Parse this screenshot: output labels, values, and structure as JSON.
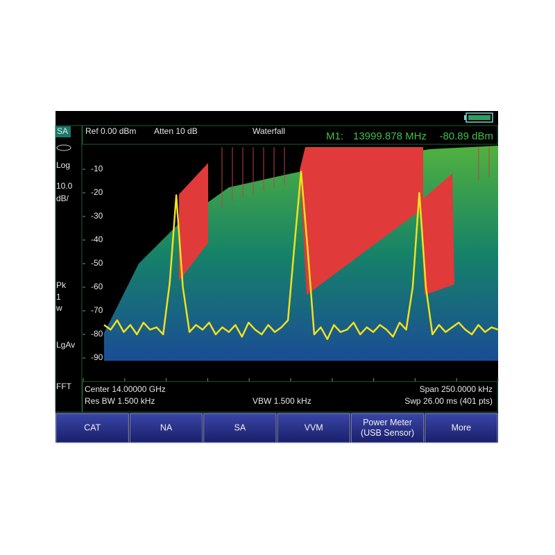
{
  "status": {
    "mode": "SA",
    "scale_type": "Log",
    "scale": "10.0",
    "scale_unit": "dB/",
    "detector": "Pk",
    "trace_num": "1",
    "trace_mode": "w",
    "average": "LgAv",
    "sweep_mode": "FFT"
  },
  "header": {
    "ref": "Ref 0.00 dBm",
    "atten": "Atten 10 dB",
    "view": "Waterfall",
    "marker_name": "M1:",
    "marker_freq": "13999.878 MHz",
    "marker_level": "-80.89 dBm"
  },
  "plot": {
    "ylim": [
      -100,
      0
    ],
    "yticks": [
      -10,
      -20,
      -30,
      -40,
      -50,
      -60,
      -70,
      -80,
      -90
    ],
    "trace": {
      "color": "#f2e21c",
      "values": [
        -76,
        -78,
        -74,
        -79,
        -76,
        -80,
        -75,
        -78,
        -77,
        -80,
        -58,
        -21,
        -60,
        -79,
        -76,
        -78,
        -75,
        -80,
        -77,
        -79,
        -76,
        -81,
        -75,
        -78,
        -80,
        -76,
        -79,
        -77,
        -74,
        -42,
        -11,
        -44,
        -80,
        -77,
        -82,
        -76,
        -79,
        -78,
        -75,
        -80,
        -77,
        -79,
        -76,
        -78,
        -81,
        -75,
        -78,
        -60,
        -20,
        -60,
        -80,
        -76,
        -79,
        -77,
        -75,
        -78,
        -80,
        -76,
        -79,
        -77,
        -78
      ]
    }
  },
  "footer": {
    "center": "Center 14.00000 GHz",
    "span": "Span 250.0000 kHz",
    "rbw": "Res BW 1.500 kHz",
    "vbw": "VBW 1.500 kHz",
    "sweep": "Swp 26.00 ms (401 pts)"
  },
  "softkeys": [
    [
      "CAT"
    ],
    [
      "NA"
    ],
    [
      "SA"
    ],
    [
      "VVM"
    ],
    [
      "Power Meter",
      "(USB Sensor)"
    ],
    [
      "More"
    ]
  ]
}
